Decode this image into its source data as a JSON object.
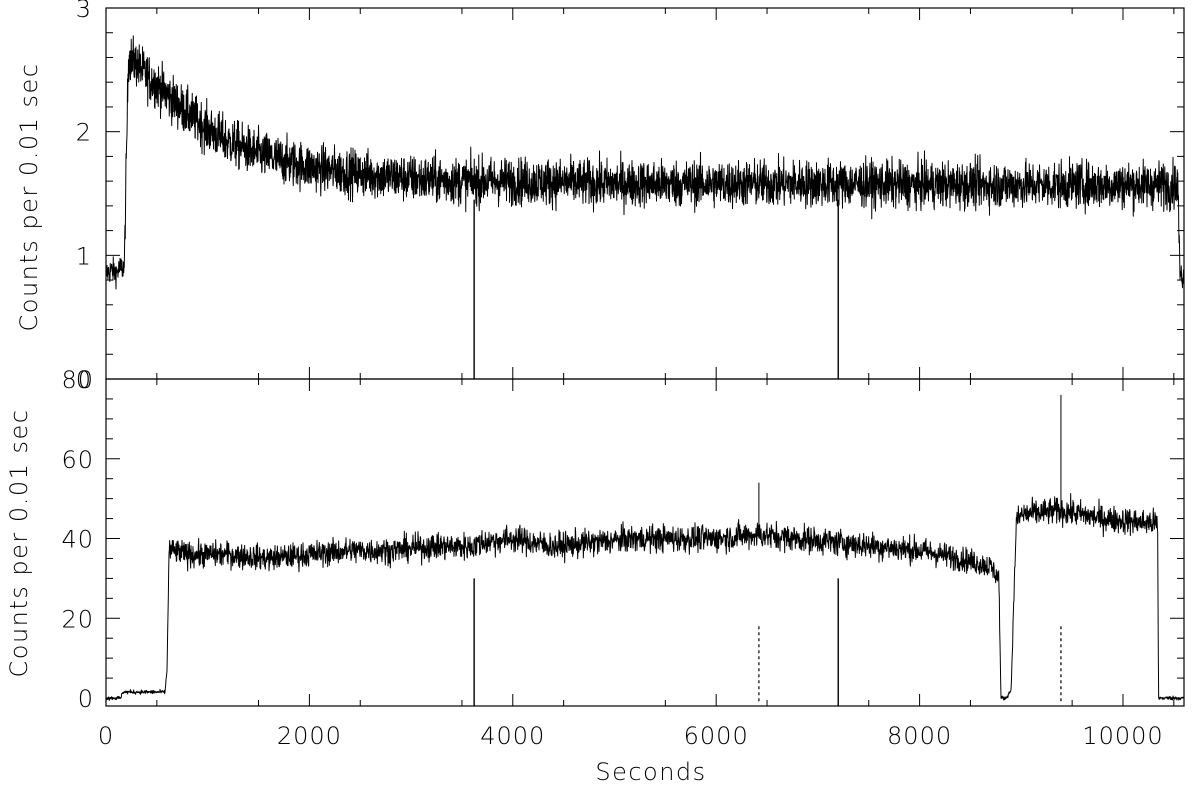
{
  "chart_data": [
    {
      "type": "line",
      "panel": "top",
      "title": "",
      "xlabel": "",
      "ylabel": "Counts per 0.01 sec",
      "xlim": [
        0,
        10600
      ],
      "ylim": [
        0,
        3
      ],
      "xticks": [
        0,
        2000,
        4000,
        6000,
        8000,
        10000
      ],
      "yticks": [
        0,
        1,
        2,
        3
      ],
      "ytick_labels": [
        "0",
        "1",
        "2",
        "3"
      ],
      "grid": false,
      "noise_amplitude": 0.18,
      "series": [
        {
          "x": [
            0,
            50,
            100,
            150,
            180,
            220,
            300,
            400,
            500,
            600,
            800,
            1000,
            1200,
            1500,
            1800,
            2100,
            2500,
            3000,
            3500,
            4000,
            5000,
            6000,
            7000,
            8000,
            9000,
            10000,
            10500,
            10540,
            10560,
            10600
          ],
          "values": [
            0.85,
            0.88,
            0.86,
            0.9,
            0.9,
            2.6,
            2.55,
            2.45,
            2.38,
            2.3,
            2.15,
            2.02,
            1.92,
            1.82,
            1.75,
            1.7,
            1.66,
            1.62,
            1.6,
            1.6,
            1.58,
            1.58,
            1.58,
            1.57,
            1.57,
            1.57,
            1.57,
            1.57,
            0.85,
            0.82
          ]
        }
      ],
      "dropouts": [
        3620,
        7200
      ]
    },
    {
      "type": "line",
      "panel": "bottom",
      "title": "",
      "xlabel": "Seconds",
      "ylabel": "Counts per 0.01 sec",
      "xlim": [
        0,
        10600
      ],
      "ylim": [
        -2,
        80
      ],
      "xticks": [
        0,
        2000,
        4000,
        6000,
        8000,
        10000
      ],
      "xtick_labels": [
        "0",
        "2000",
        "4000",
        "6000",
        "8000",
        "10000"
      ],
      "yticks": [
        0,
        20,
        40,
        60,
        80
      ],
      "ytick_labels": [
        "0",
        "20",
        "40",
        "60",
        "80"
      ],
      "grid": false,
      "noise_amplitude": 3.2,
      "series": [
        {
          "x": [
            0,
            150,
            160,
            580,
            600,
            620,
            800,
            1200,
            1600,
            2000,
            2400,
            2800,
            3200,
            3600,
            3700,
            4000,
            4400,
            4800,
            5200,
            5600,
            6000,
            6400,
            6800,
            7200,
            7600,
            8000,
            8400,
            8700,
            8780,
            8800,
            8850,
            8900,
            8950,
            9000,
            9400,
            9800,
            10200,
            10340,
            10350,
            10600
          ],
          "values": [
            0,
            0,
            1.5,
            1.5,
            7,
            37,
            36,
            36,
            35,
            36,
            37,
            37,
            38,
            38,
            39,
            40,
            38,
            39,
            40,
            40,
            40,
            41,
            40,
            39,
            38,
            37,
            35,
            33,
            30,
            0,
            0,
            2,
            44,
            46,
            47,
            45,
            44,
            44,
            0,
            0
          ]
        }
      ],
      "spikes": [
        {
          "x": 9390,
          "y": 76
        },
        {
          "x": 6420,
          "y": 54
        }
      ],
      "dropouts": [
        3620,
        7200
      ],
      "markers": [
        6420,
        9390
      ]
    }
  ]
}
